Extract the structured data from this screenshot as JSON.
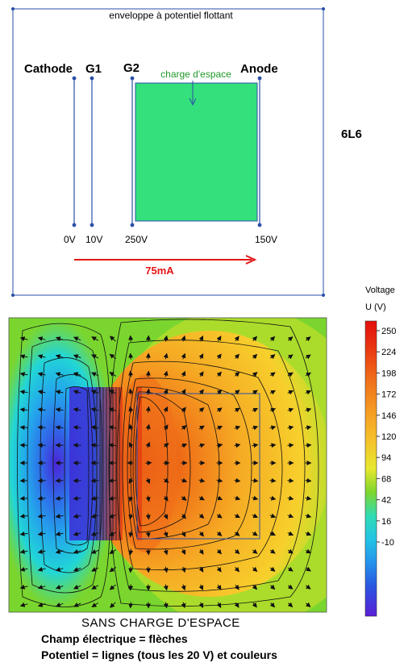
{
  "schematic": {
    "envelope_label": "enveloppe à potentiel flottant",
    "electrodes": [
      {
        "name": "Cathode",
        "voltage": "0V"
      },
      {
        "name": "G1",
        "voltage": "10V"
      },
      {
        "name": "G2",
        "voltage": "250V"
      },
      {
        "name": "Anode",
        "voltage": "150V"
      }
    ],
    "space_charge_label": "charge d'espace",
    "current_label": "75mA",
    "colors": {
      "space_charge": "#33e07c",
      "electrode": "#2a4fa8",
      "current": "#e41414",
      "label_green": "#1f9a2a"
    }
  },
  "tube_label": "6L6",
  "colorbar": {
    "title": "Voltage",
    "unit": "U (V)",
    "ticks": [
      "250",
      "224",
      "198",
      "172",
      "146",
      "120",
      "94",
      "68",
      "42",
      "16",
      "-10"
    ]
  },
  "caption": {
    "title": "SANS  CHARGE  D'ESPACE",
    "line1": "Champ électrique = flèches",
    "line2": "Potentiel = lignes (tous les 20 V) et couleurs"
  }
}
